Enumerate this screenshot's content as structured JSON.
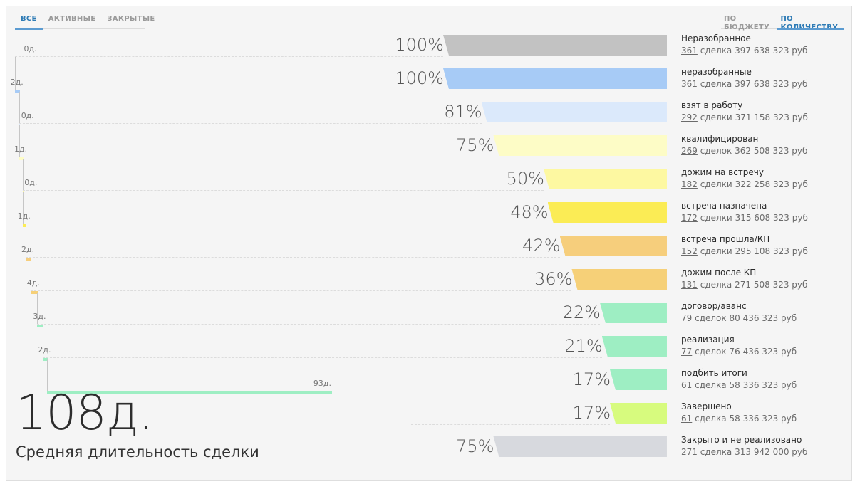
{
  "tabs_left": [
    {
      "label": "ВСЕ",
      "active": true
    },
    {
      "label": "АКТИВНЫЕ",
      "active": false
    },
    {
      "label": "ЗАКРЫТЫЕ",
      "active": false
    }
  ],
  "tabs_right": [
    {
      "label": "ПО БЮДЖЕТУ",
      "active": false
    },
    {
      "label": "ПО КОЛИЧЕСТВУ",
      "active": true
    }
  ],
  "stages": [
    {
      "name": "Неразобранное",
      "count": "361",
      "count_word": "сделка",
      "amount": "397 638 323 руб",
      "percent_label": "100%",
      "percent": 100,
      "color": "#c2c2c2",
      "days_label": "0д.",
      "days": 0
    },
    {
      "name": "неразобранные",
      "count": "361",
      "count_word": "сделка",
      "amount": "397 638 323 руб",
      "percent_label": "100%",
      "percent": 100,
      "color": "#a7cbf6",
      "days_label": "2д.",
      "days": 2
    },
    {
      "name": "взят в работу",
      "count": "292",
      "count_word": "сделки",
      "amount": "371 158 323 руб",
      "percent_label": "81%",
      "percent": 81,
      "color": "#dbe9fb",
      "days_label": "0д.",
      "days": 0
    },
    {
      "name": "квалифицирован",
      "count": "269",
      "count_word": "сделок",
      "amount": "362 508 323 руб",
      "percent_label": "75%",
      "percent": 75,
      "color": "#fdfcc6",
      "days_label": "1д.",
      "days": 1
    },
    {
      "name": "дожим на встречу",
      "count": "182",
      "count_word": "сделки",
      "amount": "322 258 323 руб",
      "percent_label": "50%",
      "percent": 50,
      "color": "#fdf8a1",
      "days_label": "0д.",
      "days": 0
    },
    {
      "name": "встреча назначена",
      "count": "172",
      "count_word": "сделки",
      "amount": "315 608 323 руб",
      "percent_label": "48%",
      "percent": 48,
      "color": "#fbec55",
      "days_label": "1д.",
      "days": 1
    },
    {
      "name": "встреча прошла/КП",
      "count": "152",
      "count_word": "сделки",
      "amount": "295 108 323 руб",
      "percent_label": "42%",
      "percent": 42,
      "color": "#f6ce7c",
      "days_label": "2д.",
      "days": 2
    },
    {
      "name": "дожим после КП",
      "count": "131",
      "count_word": "сделка",
      "amount": "271 508 323 руб",
      "percent_label": "36%",
      "percent": 36,
      "color": "#f6d078",
      "days_label": "4д.",
      "days": 4
    },
    {
      "name": "договор/аванс",
      "count": "79",
      "count_word": "сделок",
      "amount": "80 436 323 руб",
      "percent_label": "22%",
      "percent": 22,
      "color": "#9eeec3",
      "days_label": "3д.",
      "days": 3
    },
    {
      "name": "реализация",
      "count": "77",
      "count_word": "сделок",
      "amount": "76 436 323 руб",
      "percent_label": "21%",
      "percent": 21,
      "color": "#9eeec3",
      "days_label": "2д.",
      "days": 2
    },
    {
      "name": "подбить итоги",
      "count": "61",
      "count_word": "сделка",
      "amount": "58 336 323 руб",
      "percent_label": "17%",
      "percent": 17,
      "color": "#9eeec3",
      "days_label": "93д.",
      "days": 93
    },
    {
      "name": "Завершено",
      "count": "61",
      "count_word": "сделка",
      "amount": "58 336 323 руб",
      "percent_label": "17%",
      "percent": 17,
      "color": "#d7fb7e",
      "days_label": "",
      "days": null
    },
    {
      "name": "Закрыто и не реализовано",
      "count": "271",
      "count_word": "сделка",
      "amount": "313 942 000 руб",
      "percent_label": "75%",
      "percent": 75,
      "color": "#d7d9de",
      "days_label": "",
      "days": null
    }
  ],
  "summary": {
    "value": "108д.",
    "caption": "Средняя длительность сделки"
  }
}
